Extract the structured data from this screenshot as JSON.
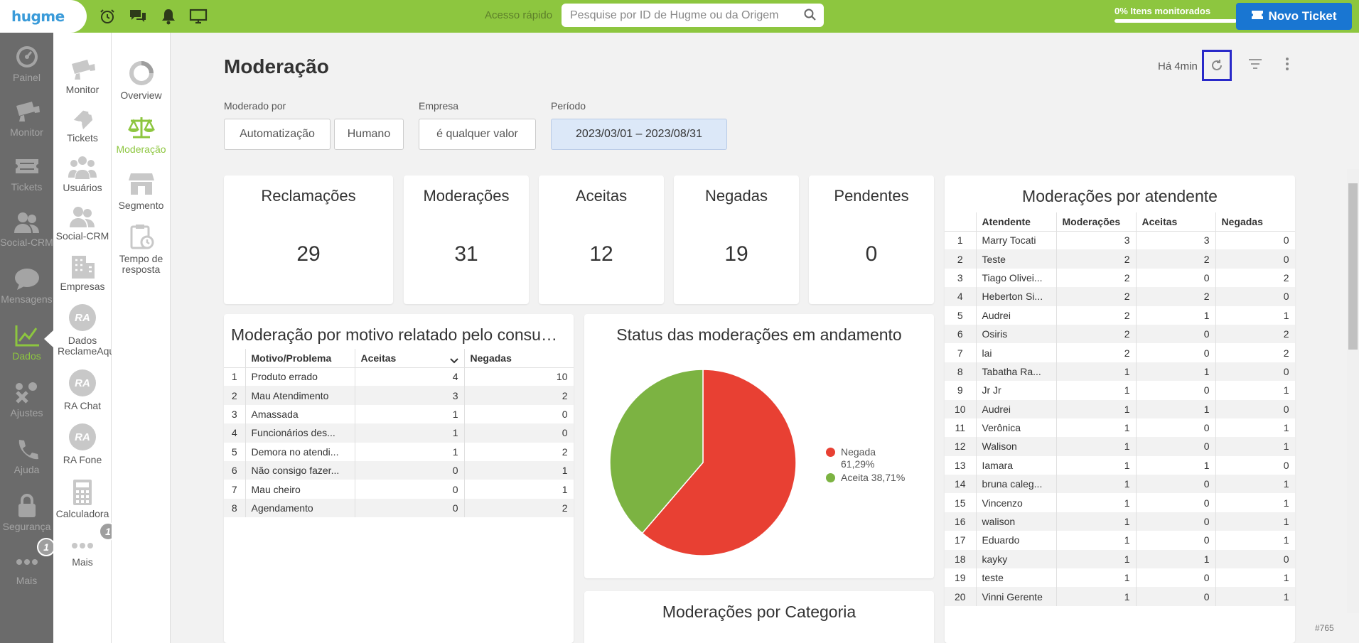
{
  "topbar": {
    "logo": "hugme",
    "quick_access_label": "Acesso rápido",
    "search_placeholder": "Pesquise por ID de Hugme ou da Origem",
    "monitor_label": "0% Itens monitorados",
    "new_ticket_label": "Novo Ticket",
    "icons": [
      "alarm-clock-icon",
      "chat-icon",
      "bell-icon",
      "monitor-icon"
    ]
  },
  "nav_main": [
    {
      "label": "Painel",
      "icon": "gauge-icon"
    },
    {
      "label": "Monitor",
      "icon": "camera-icon"
    },
    {
      "label": "Tickets",
      "icon": "ticket-icon"
    },
    {
      "label": "Social-CRM",
      "icon": "users-icon"
    },
    {
      "label": "Mensagens",
      "icon": "speech-bubble-icon"
    },
    {
      "label": "Dados",
      "icon": "line-chart-icon"
    },
    {
      "label": "Ajustes",
      "icon": "wrench-icon"
    },
    {
      "label": "Ajuda",
      "icon": "phone-icon"
    },
    {
      "label": "Segurança",
      "icon": "lock-icon"
    },
    {
      "label": "Mais",
      "icon": "dots-icon",
      "badge": "1"
    }
  ],
  "nav_secondary": [
    {
      "label": "Monitor"
    },
    {
      "label": "Tickets"
    },
    {
      "label": "Usuários"
    },
    {
      "label": "Social-CRM"
    },
    {
      "label": "Empresas"
    },
    {
      "label": "Dados ReclameAqui",
      "icon_text": "RA"
    },
    {
      "label": "RA Chat",
      "icon_text": "RA"
    },
    {
      "label": "RA Fone",
      "icon_text": "RA"
    },
    {
      "label": "Calculadora"
    },
    {
      "label": "Mais",
      "badge": "1"
    }
  ],
  "nav_tertiary": [
    {
      "label": "Overview"
    },
    {
      "label": "Moderação",
      "active": true
    },
    {
      "label": "Segmento"
    },
    {
      "label": "Tempo de resposta"
    }
  ],
  "page": {
    "title": "Moderação",
    "updated": "Há 4min",
    "ticket_id": "#765"
  },
  "filters": {
    "moderated_by_label": "Moderado por",
    "automation": "Automatização",
    "human": "Humano",
    "company_label": "Empresa",
    "company_value": "é qualquer valor",
    "period_label": "Período",
    "period_value": "2023/03/01 – 2023/08/31"
  },
  "kpis": [
    {
      "title": "Reclamações",
      "value": "29"
    },
    {
      "title": "Moderações",
      "value": "31"
    },
    {
      "title": "Aceitas",
      "value": "12"
    },
    {
      "title": "Negadas",
      "value": "19"
    },
    {
      "title": "Pendentes",
      "value": "0"
    }
  ],
  "reasons_table": {
    "title": "Moderação por motivo relatado pelo consumi...",
    "columns": [
      "Motivo/Problema",
      "Aceitas",
      "Negadas"
    ],
    "rows": [
      [
        "1",
        "Produto errado",
        "4",
        "10"
      ],
      [
        "2",
        "Mau Atendimento",
        "3",
        "2"
      ],
      [
        "3",
        "Amassada",
        "1",
        "0"
      ],
      [
        "4",
        "Funcionários des...",
        "1",
        "0"
      ],
      [
        "5",
        "Demora no atendi...",
        "1",
        "2"
      ],
      [
        "6",
        "Não consigo fazer...",
        "0",
        "1"
      ],
      [
        "7",
        "Mau cheiro",
        "0",
        "1"
      ],
      [
        "8",
        "Agendamento",
        "0",
        "2"
      ]
    ]
  },
  "status_chart": {
    "title": "Status das moderações em andamento",
    "legend_negada": "Negada 61,29%",
    "legend_aceita": "Aceita 38,71%"
  },
  "chart_data": {
    "type": "pie",
    "title": "Status das moderações em andamento",
    "categories": [
      "Negada",
      "Aceita"
    ],
    "values": [
      61.29,
      38.71
    ],
    "colors": [
      "#e84033",
      "#7cb342"
    ],
    "legend": "right"
  },
  "category_card": {
    "title": "Moderações por Categoria"
  },
  "agents_table": {
    "title": "Moderações por atendente",
    "columns": [
      "Atendente",
      "Moderações",
      "Aceitas",
      "Negadas"
    ],
    "rows": [
      [
        "1",
        "Marry Tocati",
        "3",
        "3",
        "0"
      ],
      [
        "2",
        "Teste",
        "2",
        "2",
        "0"
      ],
      [
        "3",
        "Tiago Olivei...",
        "2",
        "0",
        "2"
      ],
      [
        "4",
        "Heberton Si...",
        "2",
        "2",
        "0"
      ],
      [
        "5",
        "Audrei",
        "2",
        "1",
        "1"
      ],
      [
        "6",
        "Osiris",
        "2",
        "0",
        "2"
      ],
      [
        "7",
        "lai",
        "2",
        "0",
        "2"
      ],
      [
        "8",
        "Tabatha Ra...",
        "1",
        "1",
        "0"
      ],
      [
        "9",
        "Jr Jr",
        "1",
        "0",
        "1"
      ],
      [
        "10",
        "Audrei",
        "1",
        "1",
        "0"
      ],
      [
        "11",
        "Verônica",
        "1",
        "0",
        "1"
      ],
      [
        "12",
        "Walison",
        "1",
        "0",
        "1"
      ],
      [
        "13",
        "Iamara",
        "1",
        "1",
        "0"
      ],
      [
        "14",
        "bruna caleg...",
        "1",
        "0",
        "1"
      ],
      [
        "15",
        "Vincenzo",
        "1",
        "0",
        "1"
      ],
      [
        "16",
        "walison",
        "1",
        "0",
        "1"
      ],
      [
        "17",
        "Eduardo",
        "1",
        "0",
        "1"
      ],
      [
        "18",
        "kayky",
        "1",
        "1",
        "0"
      ],
      [
        "19",
        "teste",
        "1",
        "0",
        "1"
      ],
      [
        "20",
        "Vinni Gerente",
        "1",
        "0",
        "1"
      ]
    ]
  }
}
